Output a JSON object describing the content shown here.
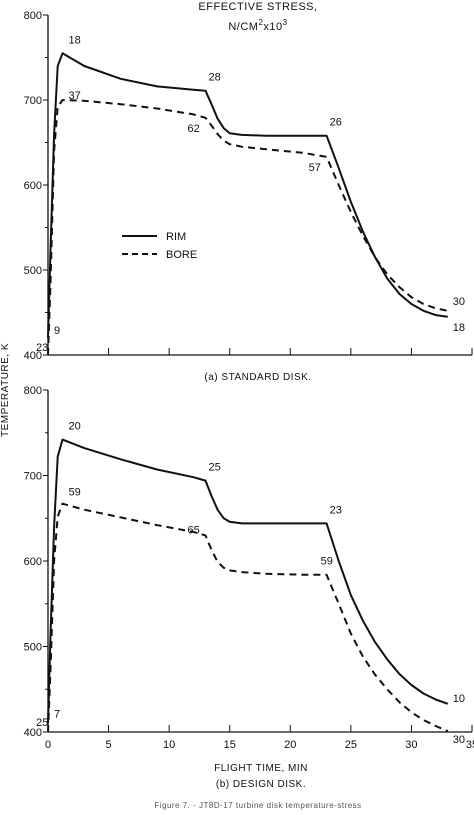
{
  "header": {
    "line1": "EFFECTIVE STRESS,",
    "line2": "N/CM",
    "line2_sup1": "2",
    "line2_mid": "x10",
    "line2_sup2": "3"
  },
  "ylabel": "TEMPERATURE, K",
  "xlabel": "FLIGHT TIME, MIN",
  "figure_caption": "Figure 7. - JT8D-17 turbine disk temperature-stress",
  "legend": {
    "rim_label": "RIM",
    "bore_label": "BORE"
  },
  "chart_data": [
    {
      "type": "line",
      "caption": "(a) STANDARD DISK.",
      "xlim": [
        0,
        35
      ],
      "ylim": [
        400,
        800
      ],
      "yticks": [
        400,
        500,
        600,
        700,
        800
      ],
      "xticks": [
        0,
        5,
        10,
        15,
        20,
        25,
        30,
        35
      ],
      "series": [
        {
          "name": "RIM",
          "style": "solid",
          "x": [
            0,
            0.2,
            0.5,
            0.8,
            1.2,
            3,
            6,
            9,
            12,
            13,
            13.5,
            14,
            14.5,
            15,
            16,
            18,
            21,
            23,
            24,
            25,
            26,
            27,
            28,
            29,
            30,
            31,
            32,
            33
          ],
          "y": [
            420,
            520,
            660,
            740,
            755,
            740,
            725,
            716,
            712,
            711,
            695,
            678,
            667,
            661,
            659,
            658,
            658,
            658,
            620,
            580,
            545,
            515,
            490,
            472,
            460,
            452,
            447,
            445
          ]
        },
        {
          "name": "BORE",
          "style": "dashed",
          "x": [
            0,
            0.2,
            0.5,
            0.8,
            1.2,
            3,
            6,
            9,
            12,
            13,
            13.5,
            14,
            14.5,
            15,
            16,
            18,
            21,
            23,
            24,
            25,
            26,
            27,
            28,
            29,
            30,
            31,
            32,
            33
          ],
          "y": [
            400,
            480,
            640,
            692,
            700,
            699,
            695,
            690,
            683,
            679,
            670,
            660,
            652,
            648,
            645,
            642,
            638,
            633,
            600,
            568,
            540,
            515,
            495,
            480,
            468,
            460,
            455,
            452
          ]
        }
      ],
      "annotations": [
        {
          "text": "18",
          "x": 1.2,
          "y": 755
        },
        {
          "text": "37",
          "x": 1.2,
          "y": 700
        },
        {
          "text": "28",
          "x": 13,
          "y": 711
        },
        {
          "text": "62",
          "x": 13,
          "y": 679
        },
        {
          "text": "26",
          "x": 23,
          "y": 658
        },
        {
          "text": "57",
          "x": 23,
          "y": 633
        },
        {
          "text": "30",
          "x": 33,
          "y": 452
        },
        {
          "text": "18",
          "x": 33,
          "y": 445
        },
        {
          "text": "9",
          "x": 0,
          "y": 420
        },
        {
          "text": "23",
          "x": 0,
          "y": 400
        }
      ]
    },
    {
      "type": "line",
      "caption": "(b) DESIGN DISK.",
      "xlim": [
        0,
        35
      ],
      "ylim": [
        400,
        800
      ],
      "yticks": [
        400,
        500,
        600,
        700,
        800
      ],
      "xticks": [
        0,
        5,
        10,
        15,
        20,
        25,
        30,
        35
      ],
      "series": [
        {
          "name": "RIM",
          "style": "solid",
          "x": [
            0,
            0.2,
            0.5,
            0.8,
            1.2,
            3,
            6,
            9,
            12,
            13,
            13.5,
            14,
            14.5,
            15,
            16,
            18,
            21,
            23,
            24,
            25,
            26,
            27,
            28,
            29,
            30,
            31,
            32,
            33
          ],
          "y": [
            410,
            510,
            640,
            722,
            742,
            732,
            719,
            707,
            698,
            694,
            676,
            660,
            650,
            646,
            644,
            644,
            644,
            644,
            600,
            560,
            530,
            505,
            485,
            468,
            455,
            445,
            438,
            433
          ]
        },
        {
          "name": "BORE",
          "style": "dashed",
          "x": [
            0,
            0.2,
            0.5,
            0.8,
            1.2,
            3,
            6,
            9,
            12,
            13,
            13.5,
            14,
            14.5,
            15,
            16,
            18,
            21,
            23,
            24,
            25,
            26,
            27,
            28,
            29,
            30,
            31,
            32,
            33
          ],
          "y": [
            400,
            470,
            600,
            652,
            667,
            660,
            651,
            642,
            634,
            630,
            613,
            599,
            592,
            589,
            587,
            585,
            584,
            584,
            550,
            515,
            488,
            467,
            450,
            435,
            423,
            414,
            407,
            401
          ]
        }
      ],
      "annotations": [
        {
          "text": "20",
          "x": 1.2,
          "y": 742
        },
        {
          "text": "59",
          "x": 1.2,
          "y": 667
        },
        {
          "text": "25",
          "x": 13,
          "y": 694
        },
        {
          "text": "65",
          "x": 13,
          "y": 630
        },
        {
          "text": "23",
          "x": 23,
          "y": 644
        },
        {
          "text": "59",
          "x": 23,
          "y": 584
        },
        {
          "text": "10",
          "x": 33,
          "y": 433
        },
        {
          "text": "30",
          "x": 33,
          "y": 401
        },
        {
          "text": "7",
          "x": 0,
          "y": 410
        },
        {
          "text": "25",
          "x": 0,
          "y": 400
        }
      ]
    }
  ]
}
